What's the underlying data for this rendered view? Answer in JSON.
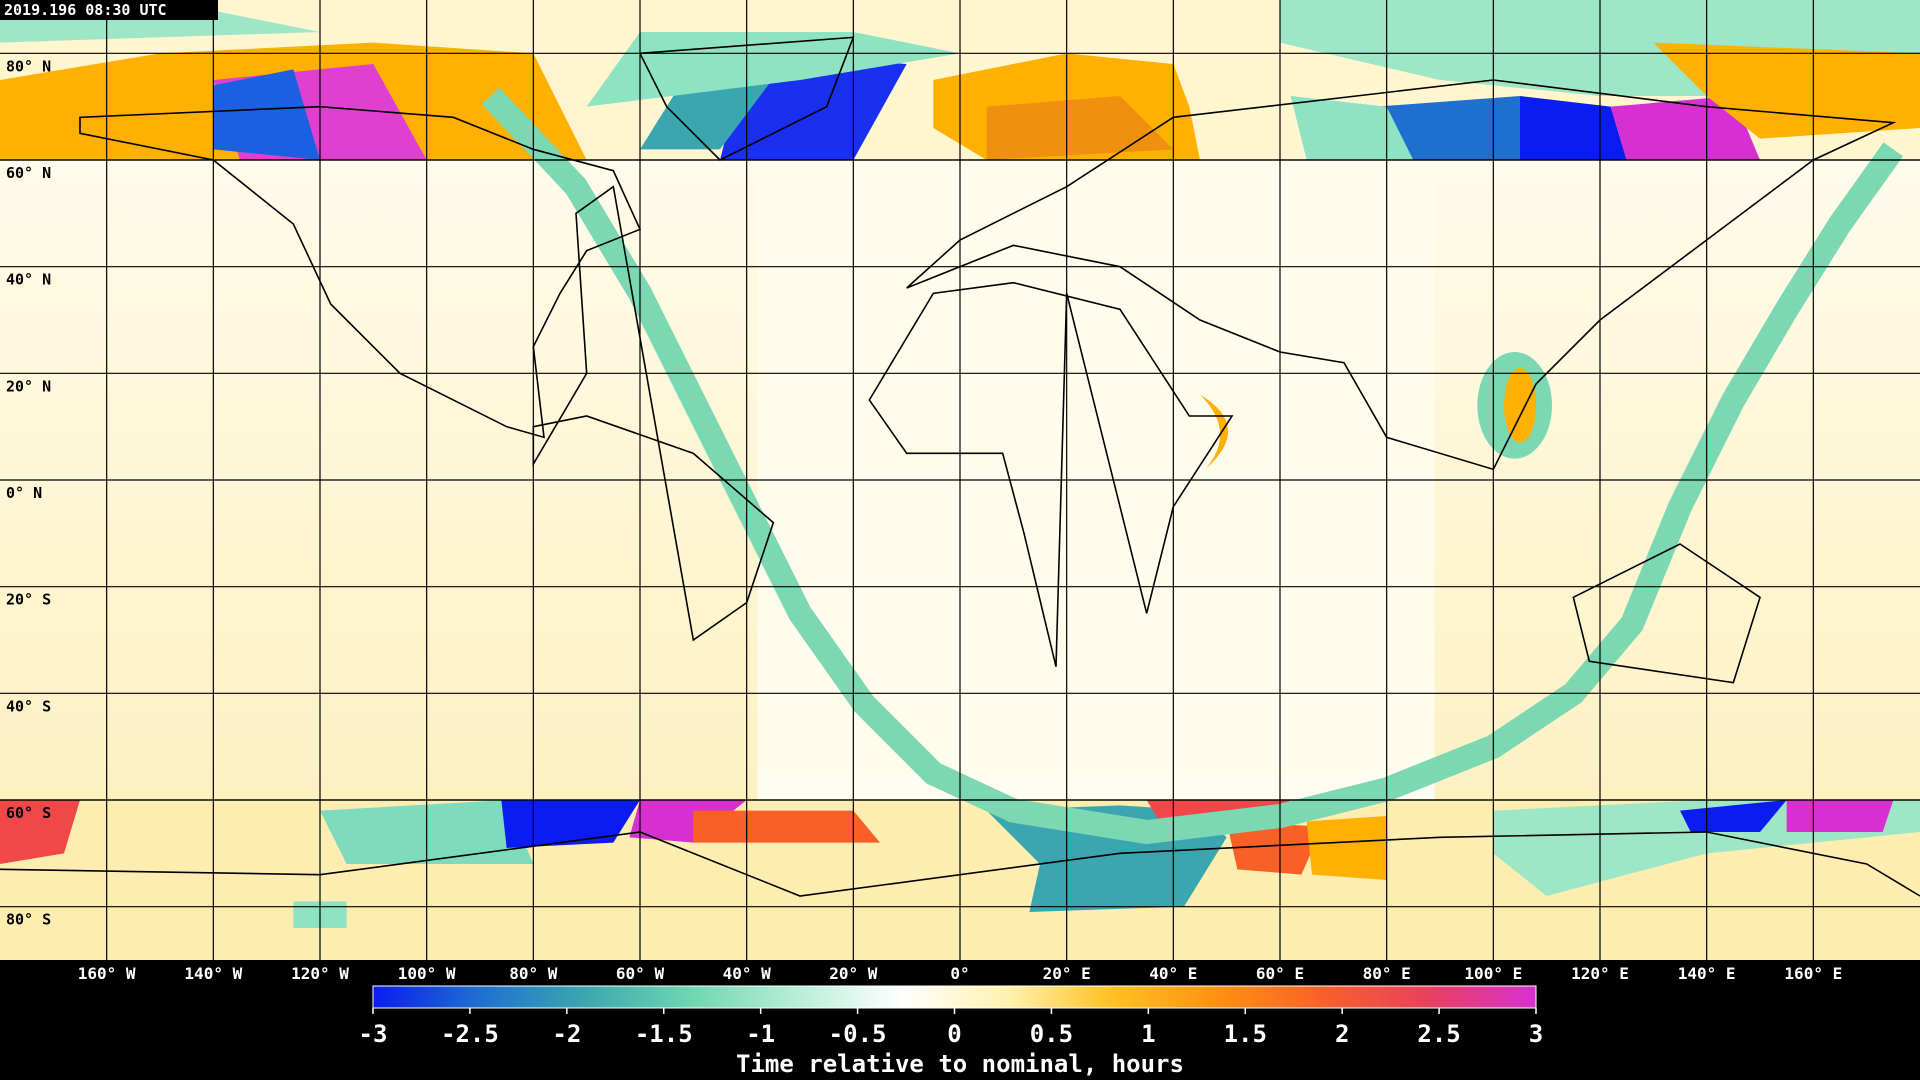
{
  "timestamp": "2019.196 08:30 UTC",
  "map": {
    "xlim": [
      -180,
      180
    ],
    "ylim": [
      -90,
      90
    ],
    "yticks": [
      {
        "value": 80,
        "label": "80° N"
      },
      {
        "value": 60,
        "label": "60° N"
      },
      {
        "value": 40,
        "label": "40° N"
      },
      {
        "value": 20,
        "label": "20° N"
      },
      {
        "value": 0,
        "label": "0° N"
      },
      {
        "value": -20,
        "label": "20° S"
      },
      {
        "value": -40,
        "label": "40° S"
      },
      {
        "value": -60,
        "label": "60° S"
      },
      {
        "value": -80,
        "label": "80° S"
      }
    ],
    "xticks": [
      {
        "value": -160,
        "label": "160° W"
      },
      {
        "value": -140,
        "label": "140° W"
      },
      {
        "value": -120,
        "label": "120° W"
      },
      {
        "value": -100,
        "label": "100° W"
      },
      {
        "value": -80,
        "label": "80° W"
      },
      {
        "value": -60,
        "label": "60° W"
      },
      {
        "value": -40,
        "label": "40° W"
      },
      {
        "value": -20,
        "label": "20° W"
      },
      {
        "value": 0,
        "label": "0°"
      },
      {
        "value": 20,
        "label": "20° E"
      },
      {
        "value": 40,
        "label": "40° E"
      },
      {
        "value": 60,
        "label": "60° E"
      },
      {
        "value": 80,
        "label": "80° E"
      },
      {
        "value": 100,
        "label": "100° E"
      },
      {
        "value": 120,
        "label": "120° E"
      },
      {
        "value": 140,
        "label": "140° E"
      },
      {
        "value": 160,
        "label": "160° E"
      }
    ]
  },
  "colorbar": {
    "lim": [
      -3,
      3
    ],
    "ticks": [
      -3,
      -2.5,
      -2,
      -1.5,
      -1,
      -0.5,
      0,
      0.5,
      1,
      1.5,
      2,
      2.5,
      3
    ],
    "label": "Time relative to nominal, hours",
    "colors": [
      "#0a1cf0",
      "#1f6fd0",
      "#3aa7b0",
      "#6fd6b0",
      "#b6eed8",
      "#ffffff",
      "#fff2b0",
      "#ffc020",
      "#ff9010",
      "#f8602a",
      "#e84060",
      "#d830d0"
    ]
  }
}
